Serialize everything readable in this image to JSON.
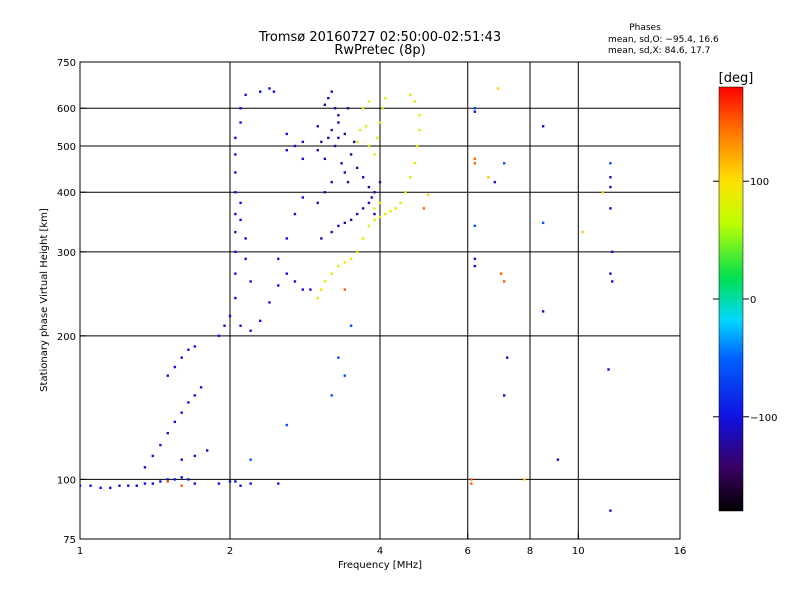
{
  "chart_data": {
    "type": "scatter",
    "title": "Tromsø 20160727 02:50:00-02:51:43",
    "subtitle": "RwPretec (8p)",
    "xlabel": "Frequency [MHz]",
    "ylabel": "Stationary phase Virtual Height [km]",
    "x_scale": "log",
    "y_scale": "log",
    "xlim": [
      1,
      16
    ],
    "ylim": [
      75,
      750
    ],
    "x_ticks": [
      1,
      2,
      4,
      6,
      8,
      10,
      16
    ],
    "y_ticks": [
      75,
      100,
      200,
      300,
      400,
      500,
      600,
      750
    ],
    "grid": "partial",
    "grid_x": [
      2,
      4,
      6,
      8,
      10
    ],
    "grid_y": [
      100,
      200,
      300,
      400,
      500,
      600
    ],
    "stats_header": "Phases",
    "stats": [
      "mean, sd,O: −95.4, 16.6",
      "mean, sd,X:  84.6, 17.7"
    ],
    "colorbar": {
      "label": "[deg]",
      "range": [
        -180,
        180
      ],
      "ticks": [
        100,
        0,
        -100
      ],
      "tick_labels": [
        "100",
        "0",
        "−100"
      ]
    },
    "series": [
      {
        "color_value": -100,
        "points": [
          [
            1.0,
            97
          ],
          [
            1.05,
            97
          ],
          [
            1.1,
            96
          ],
          [
            1.15,
            96
          ],
          [
            1.2,
            97
          ],
          [
            1.25,
            97
          ],
          [
            1.3,
            97
          ],
          [
            1.35,
            98
          ],
          [
            1.4,
            98
          ],
          [
            1.45,
            99
          ],
          [
            1.5,
            100
          ],
          [
            1.55,
            100
          ],
          [
            1.6,
            101
          ],
          [
            1.65,
            100
          ],
          [
            1.7,
            98
          ],
          [
            1.35,
            106
          ],
          [
            1.4,
            112
          ],
          [
            1.45,
            118
          ],
          [
            1.5,
            125
          ],
          [
            1.55,
            132
          ],
          [
            1.6,
            138
          ],
          [
            1.65,
            145
          ],
          [
            1.7,
            150
          ],
          [
            1.75,
            156
          ],
          [
            1.6,
            110
          ],
          [
            1.7,
            112
          ],
          [
            1.8,
            115
          ],
          [
            1.5,
            165
          ],
          [
            1.55,
            172
          ],
          [
            1.6,
            180
          ],
          [
            1.65,
            187
          ],
          [
            1.7,
            190
          ],
          [
            1.9,
            200
          ],
          [
            1.95,
            210
          ],
          [
            2.0,
            220
          ],
          [
            2.05,
            240
          ],
          [
            2.05,
            270
          ],
          [
            2.05,
            300
          ],
          [
            2.05,
            330
          ],
          [
            2.05,
            360
          ],
          [
            2.05,
            400
          ],
          [
            2.05,
            440
          ],
          [
            2.1,
            380
          ],
          [
            2.1,
            350
          ],
          [
            2.15,
            320
          ],
          [
            2.15,
            290
          ],
          [
            2.2,
            260
          ],
          [
            2.1,
            210
          ],
          [
            2.2,
            205
          ],
          [
            2.3,
            215
          ],
          [
            2.4,
            235
          ],
          [
            2.5,
            255
          ],
          [
            2.6,
            270
          ],
          [
            2.7,
            260
          ],
          [
            2.8,
            250
          ],
          [
            2.9,
            250
          ],
          [
            2.5,
            290
          ],
          [
            2.6,
            320
          ],
          [
            2.7,
            360
          ],
          [
            2.8,
            390
          ],
          [
            2.6,
            490
          ],
          [
            2.7,
            500
          ],
          [
            2.8,
            470
          ],
          [
            2.6,
            530
          ],
          [
            2.8,
            510
          ],
          [
            2.05,
            480
          ],
          [
            2.05,
            520
          ],
          [
            2.1,
            560
          ],
          [
            2.1,
            600
          ],
          [
            2.15,
            640
          ],
          [
            2.3,
            650
          ],
          [
            2.4,
            660
          ],
          [
            2.45,
            650
          ],
          [
            2.05,
            99
          ],
          [
            2.1,
            97
          ],
          [
            2.2,
            98
          ],
          [
            1.9,
            98
          ],
          [
            2.0,
            99
          ],
          [
            2.5,
            98
          ]
        ]
      },
      {
        "color_value": -120,
        "points": [
          [
            3.0,
            490
          ],
          [
            3.05,
            510
          ],
          [
            3.1,
            470
          ],
          [
            3.15,
            520
          ],
          [
            3.2,
            540
          ],
          [
            3.25,
            500
          ],
          [
            3.3,
            560
          ],
          [
            3.1,
            610
          ],
          [
            3.15,
            630
          ],
          [
            3.2,
            650
          ],
          [
            3.25,
            600
          ],
          [
            3.3,
            580
          ],
          [
            3.35,
            460
          ],
          [
            3.4,
            440
          ],
          [
            3.45,
            420
          ],
          [
            3.5,
            480
          ],
          [
            3.55,
            510
          ],
          [
            3.6,
            450
          ],
          [
            3.7,
            430
          ],
          [
            3.8,
            410
          ],
          [
            3.85,
            390
          ],
          [
            3.9,
            360
          ],
          [
            3.05,
            320
          ],
          [
            3.2,
            330
          ],
          [
            3.3,
            340
          ],
          [
            3.4,
            345
          ],
          [
            3.5,
            350
          ],
          [
            3.6,
            360
          ],
          [
            3.7,
            370
          ],
          [
            3.8,
            380
          ],
          [
            3.9,
            400
          ],
          [
            4.0,
            420
          ],
          [
            3.1,
            400
          ],
          [
            3.2,
            420
          ],
          [
            3.0,
            380
          ],
          [
            3.0,
            550
          ],
          [
            3.3,
            520
          ],
          [
            3.4,
            530
          ],
          [
            3.45,
            600
          ]
        ]
      },
      {
        "color_value": 90,
        "points": [
          [
            3.0,
            240
          ],
          [
            3.05,
            250
          ],
          [
            3.1,
            260
          ],
          [
            3.2,
            270
          ],
          [
            3.3,
            280
          ],
          [
            3.4,
            285
          ],
          [
            3.5,
            290
          ],
          [
            3.6,
            300
          ],
          [
            3.7,
            320
          ],
          [
            3.8,
            340
          ],
          [
            3.9,
            350
          ],
          [
            4.0,
            355
          ],
          [
            4.1,
            360
          ],
          [
            4.2,
            365
          ],
          [
            4.3,
            370
          ],
          [
            4.4,
            380
          ],
          [
            4.5,
            400
          ],
          [
            4.6,
            430
          ],
          [
            4.7,
            460
          ],
          [
            4.75,
            500
          ],
          [
            4.8,
            540
          ],
          [
            4.8,
            580
          ],
          [
            4.7,
            620
          ],
          [
            4.6,
            640
          ],
          [
            4.0,
            380
          ],
          [
            3.9,
            370
          ]
        ]
      },
      {
        "color_value": 70,
        "points": [
          [
            3.9,
            480
          ],
          [
            3.95,
            520
          ],
          [
            4.0,
            560
          ],
          [
            4.05,
            600
          ],
          [
            4.1,
            630
          ],
          [
            3.8,
            500
          ],
          [
            3.75,
            550
          ],
          [
            3.7,
            600
          ],
          [
            3.8,
            620
          ],
          [
            3.6,
            510
          ],
          [
            3.65,
            540
          ]
        ]
      },
      {
        "color_value": -60,
        "points": [
          [
            2.2,
            110
          ],
          [
            2.6,
            130
          ],
          [
            3.2,
            150
          ],
          [
            3.4,
            165
          ],
          [
            3.3,
            180
          ],
          [
            3.5,
            210
          ],
          [
            6.2,
            600
          ],
          [
            7.1,
            460
          ],
          [
            8.5,
            345
          ],
          [
            11.6,
            460
          ],
          [
            6.2,
            340
          ]
        ]
      },
      {
        "color_value": -110,
        "points": [
          [
            6.2,
            590
          ],
          [
            6.8,
            420
          ],
          [
            6.2,
            290
          ],
          [
            6.2,
            280
          ],
          [
            7.2,
            180
          ],
          [
            7.1,
            150
          ],
          [
            8.5,
            225
          ],
          [
            8.5,
            550
          ],
          [
            9.1,
            110
          ],
          [
            11.5,
            170
          ],
          [
            11.6,
            370
          ],
          [
            11.6,
            430
          ],
          [
            11.6,
            410
          ],
          [
            11.7,
            300
          ],
          [
            11.6,
            270
          ],
          [
            11.6,
            86
          ],
          [
            11.7,
            260
          ]
        ]
      },
      {
        "color_value": 150,
        "points": [
          [
            6.2,
            470
          ],
          [
            6.2,
            460
          ],
          [
            6.1,
            100
          ],
          [
            7.1,
            260
          ],
          [
            3.4,
            250
          ],
          [
            1.5,
            99
          ],
          [
            1.6,
            97
          ],
          [
            4.9,
            370
          ],
          [
            7.0,
            270
          ],
          [
            6.1,
            98
          ]
        ]
      },
      {
        "color_value": 110,
        "points": [
          [
            6.9,
            660
          ],
          [
            5.0,
            395
          ],
          [
            7.8,
            100
          ],
          [
            11.2,
            400
          ],
          [
            6.6,
            430
          ],
          [
            10.2,
            330
          ]
        ]
      }
    ]
  }
}
